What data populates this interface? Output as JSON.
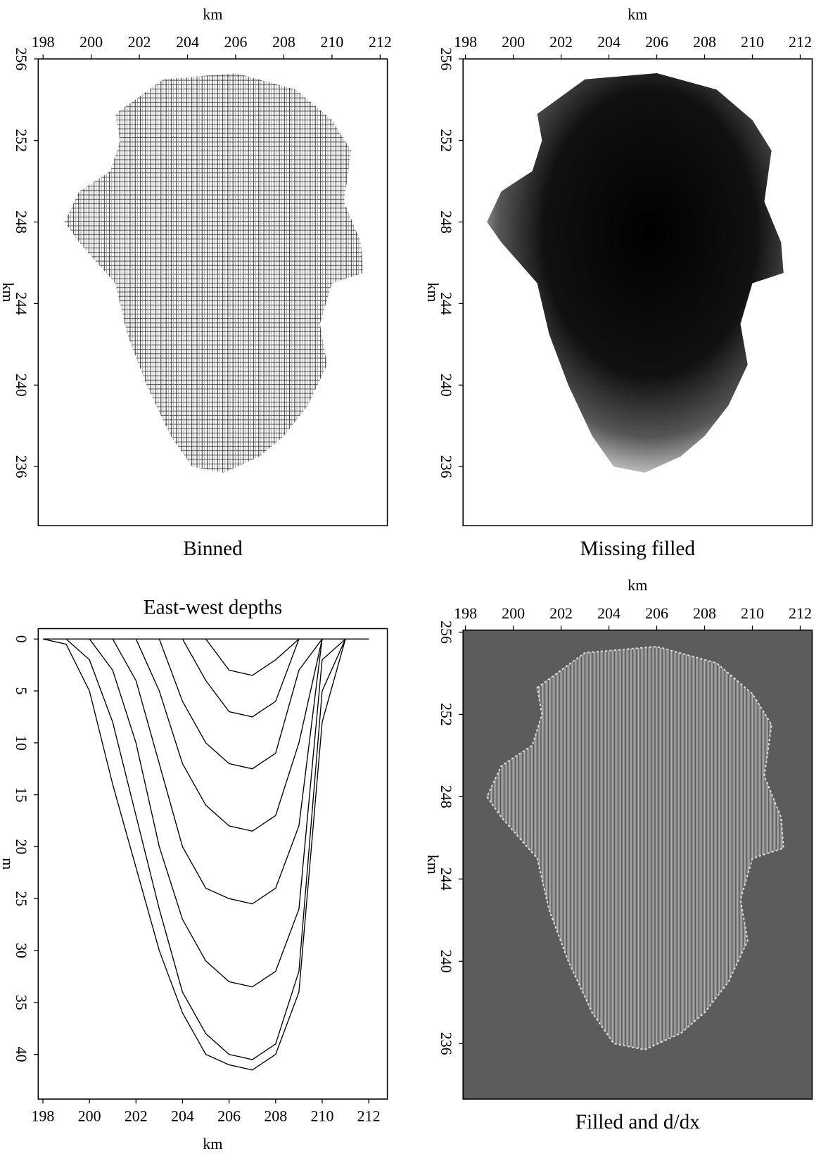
{
  "chart_data": [
    {
      "type": "image",
      "title": "Binned",
      "x_label": "km",
      "y_label": "km",
      "xlim": [
        197.8,
        212.3
      ],
      "xticks": [
        198,
        200,
        202,
        204,
        206,
        208,
        210,
        212
      ],
      "ylim": [
        233.1,
        256
      ],
      "yticks": [
        236,
        240,
        244,
        248,
        252,
        256
      ]
    },
    {
      "type": "image",
      "title": "Missing filled",
      "x_label": "km",
      "y_label": "km",
      "xlim": [
        197.9,
        212.5
      ],
      "xticks": [
        198,
        200,
        202,
        204,
        206,
        208,
        210,
        212
      ],
      "ylim": [
        233.1,
        256
      ],
      "yticks": [
        236,
        240,
        244,
        248,
        252,
        256
      ]
    },
    {
      "type": "line",
      "title": "East-west depths",
      "x_label": "km",
      "y_label": "m",
      "xlim": [
        197.8,
        212.8
      ],
      "xticks": [
        198,
        200,
        202,
        204,
        206,
        208,
        210,
        212
      ],
      "ylim": [
        44.3,
        -1
      ],
      "yticks": [
        0,
        5,
        10,
        15,
        20,
        25,
        30,
        35,
        40
      ],
      "x": [
        198,
        199,
        200,
        201,
        202,
        203,
        204,
        205,
        206,
        207,
        208,
        209,
        210,
        211,
        212
      ],
      "series": [
        {
          "color": "#000",
          "values": [
            null,
            null,
            null,
            null,
            null,
            null,
            null,
            0,
            3,
            3.5,
            2,
            0,
            null,
            null,
            null
          ]
        },
        {
          "color": "#000",
          "values": [
            null,
            null,
            null,
            null,
            null,
            null,
            0,
            4,
            7,
            7.5,
            6,
            0,
            null,
            null,
            null
          ]
        },
        {
          "color": "#000",
          "values": [
            null,
            null,
            null,
            null,
            null,
            0,
            6,
            10,
            12,
            12.5,
            11,
            3,
            0,
            null,
            null
          ]
        },
        {
          "color": "#000",
          "values": [
            null,
            null,
            null,
            null,
            0,
            5,
            12,
            16,
            18,
            18.5,
            17,
            10,
            0,
            null,
            null
          ]
        },
        {
          "color": "#000",
          "values": [
            null,
            null,
            null,
            0,
            4,
            12,
            20,
            24,
            25,
            25.5,
            24,
            18,
            0,
            null,
            null
          ]
        },
        {
          "color": "#000",
          "values": [
            null,
            null,
            0,
            3,
            10,
            20,
            27,
            31,
            33,
            33.5,
            32,
            26,
            2,
            0,
            null
          ]
        },
        {
          "color": "#000",
          "values": [
            null,
            0,
            2,
            8,
            17,
            26,
            34,
            38,
            40,
            40.5,
            39,
            32,
            5,
            0,
            null
          ]
        },
        {
          "color": "#000",
          "values": [
            0,
            0.5,
            5,
            14,
            22,
            30,
            36,
            40,
            41,
            41.5,
            40,
            34,
            8,
            0,
            null
          ]
        },
        {
          "color": "#000",
          "values": [
            0,
            0,
            0,
            0,
            0,
            0,
            0,
            0,
            0,
            0,
            0,
            0,
            0,
            0,
            0
          ]
        }
      ]
    },
    {
      "type": "image",
      "title": "Filled and d/dx",
      "x_label": "km",
      "y_label": "km",
      "xlim": [
        197.9,
        212.5
      ],
      "xticks": [
        198,
        200,
        202,
        204,
        206,
        208,
        210,
        212
      ],
      "ylim": [
        233.3,
        256.1
      ],
      "yticks": [
        236,
        240,
        244,
        248,
        252,
        256
      ]
    }
  ]
}
